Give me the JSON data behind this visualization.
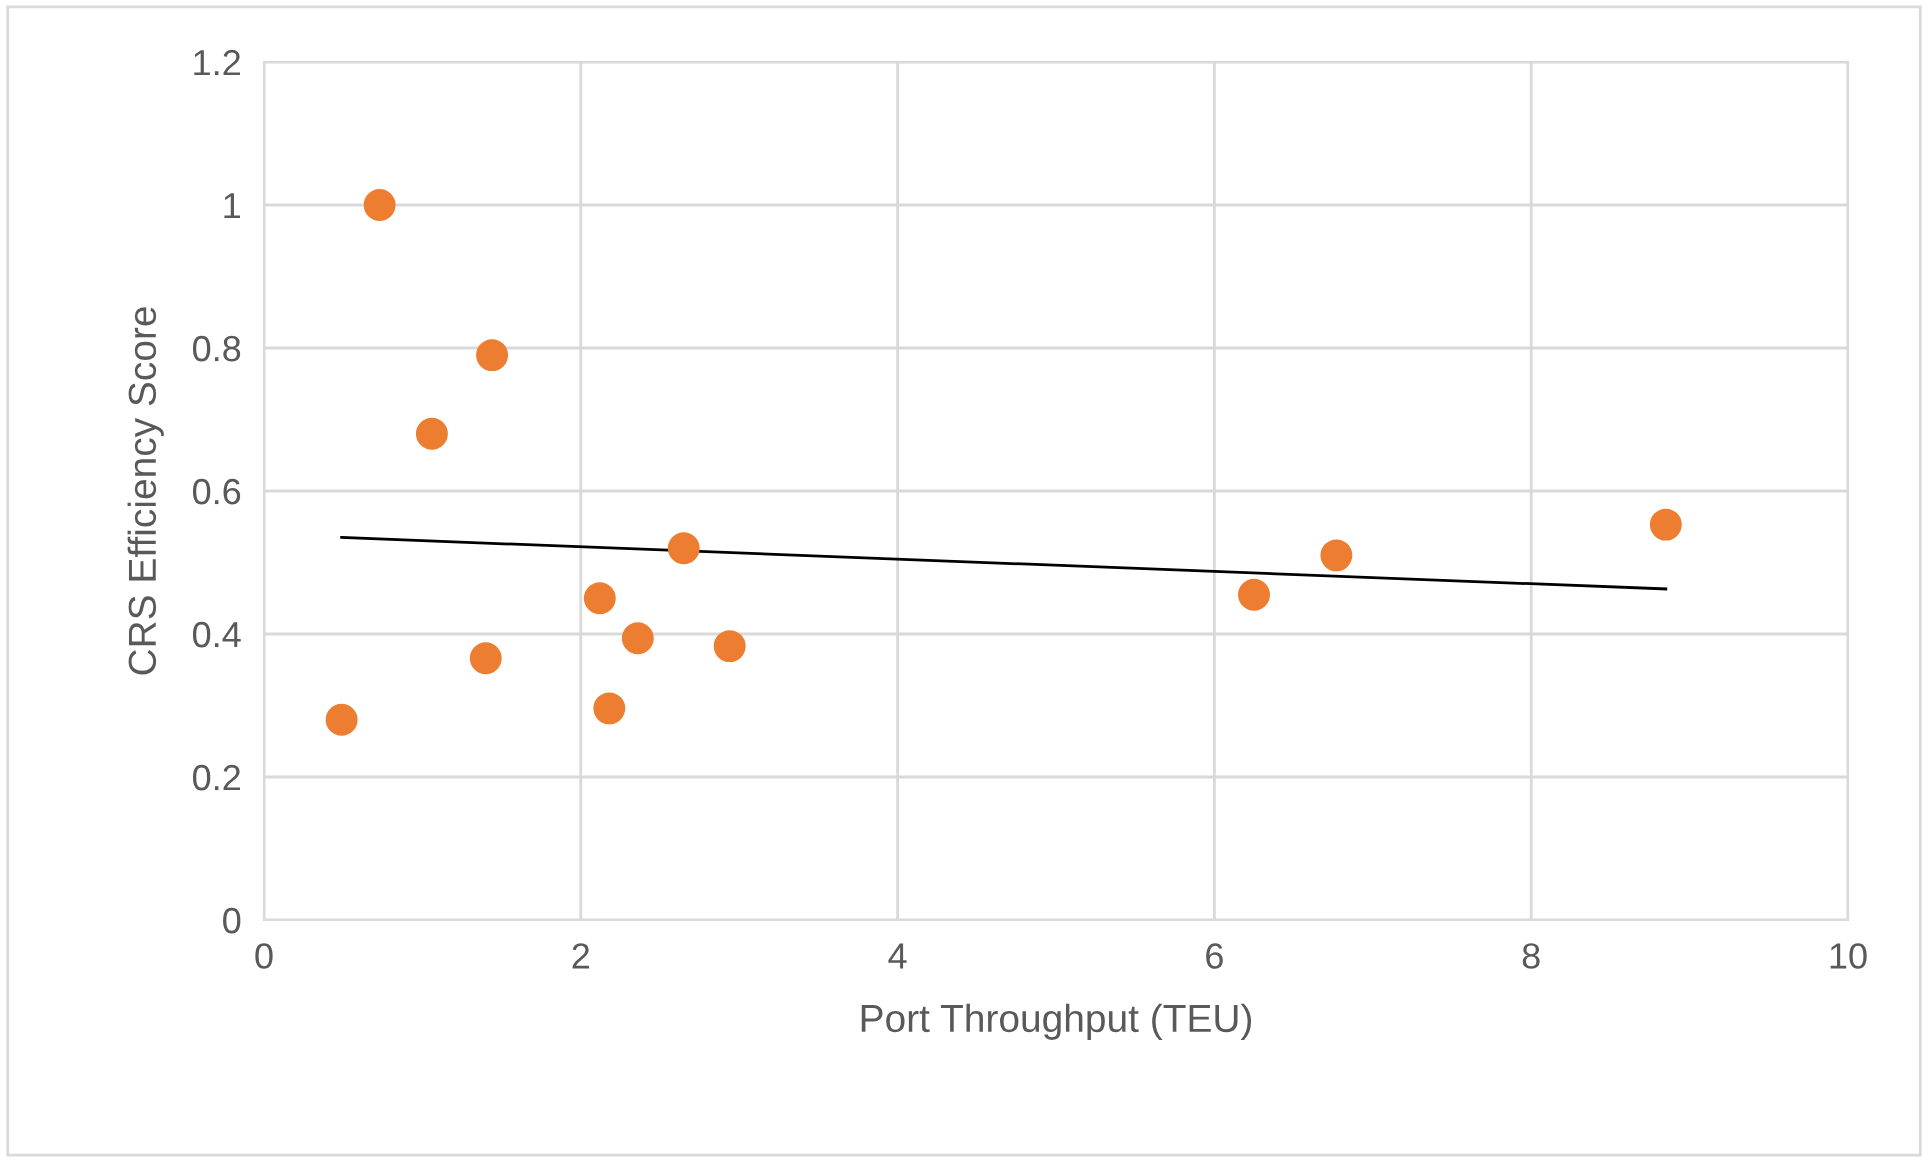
{
  "chart_data": {
    "type": "scatter",
    "xlabel": "Port Throughput (TEU)",
    "ylabel": "CRS Efficiency Score",
    "xlim": [
      0,
      10
    ],
    "xticks": [
      0,
      2,
      4,
      6,
      8,
      10
    ],
    "ylim": [
      0,
      1.2
    ],
    "yticks": [
      0,
      0.2,
      0.4,
      0.6,
      0.8,
      1,
      1.2
    ],
    "grid": true,
    "series": [
      {
        "color": "#ed7d31",
        "marker": "circle",
        "x": [
          0.73,
          1.44,
          1.06,
          0.49,
          1.4,
          2.12,
          2.18,
          2.36,
          2.65,
          2.94,
          6.25,
          6.77,
          8.85
        ],
        "values": [
          1.0,
          0.79,
          0.68,
          0.28,
          0.366,
          0.45,
          0.296,
          0.394,
          0.52,
          0.383,
          0.455,
          0.51,
          0.553
        ]
      },
      {
        "type": "line",
        "color": "#000000",
        "x": [
          0.49,
          8.85
        ],
        "values": [
          0.535,
          0.463
        ]
      }
    ]
  }
}
